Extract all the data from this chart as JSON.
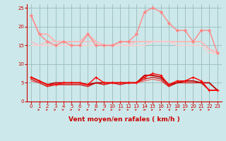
{
  "xlabel": "Vent moyen/en rafales ( km/h )",
  "background_color": "#cce8ea",
  "grid_color": "#99bbbb",
  "xlim": [
    -0.5,
    23.5
  ],
  "ylim": [
    0,
    26
  ],
  "yticks": [
    0,
    5,
    10,
    15,
    20,
    25
  ],
  "xticks": [
    0,
    1,
    2,
    3,
    4,
    5,
    6,
    7,
    8,
    9,
    10,
    11,
    12,
    13,
    14,
    15,
    16,
    17,
    18,
    19,
    20,
    21,
    22,
    23
  ],
  "series": [
    {
      "name": "rafales_light",
      "y": [
        23,
        18,
        18,
        16,
        16,
        16,
        16,
        18,
        16,
        15,
        15,
        16,
        16,
        16,
        16,
        16,
        16,
        16,
        16,
        16,
        16,
        16,
        14,
        13
      ],
      "color": "#ffaaaa",
      "lw": 1.2,
      "marker": null,
      "zorder": 2
    },
    {
      "name": "rafales_mid",
      "y": [
        23,
        18,
        16,
        15,
        16,
        15,
        15,
        18,
        15,
        15,
        15,
        16,
        16,
        18,
        24,
        25,
        24,
        21,
        19,
        19,
        16,
        19,
        19,
        13
      ],
      "color": "#ff8888",
      "lw": 1.0,
      "marker": "D",
      "ms": 2.0,
      "zorder": 3
    },
    {
      "name": "moyen_light1",
      "y": [
        16,
        15,
        16,
        16,
        16,
        16,
        16,
        16,
        16,
        15,
        15,
        15,
        15,
        16,
        16,
        16,
        16,
        16,
        16,
        16,
        16,
        16,
        14,
        13
      ],
      "color": "#ffbbbb",
      "lw": 1.0,
      "marker": null,
      "zorder": 2
    },
    {
      "name": "moyen_light2",
      "y": [
        15,
        15,
        15,
        15,
        15,
        15,
        15,
        15,
        15,
        15,
        15,
        15,
        15,
        15,
        15,
        16,
        16,
        16,
        15,
        15,
        15,
        15,
        13,
        13
      ],
      "color": "#ffcccc",
      "lw": 1.0,
      "marker": null,
      "zorder": 2
    },
    {
      "name": "wind_dark1",
      "y": [
        6.5,
        5.5,
        4.5,
        5,
        5,
        5,
        5,
        4.5,
        5,
        5,
        5,
        5,
        5,
        5,
        7,
        7,
        6.5,
        4.5,
        5,
        5.5,
        5.5,
        5,
        5,
        3
      ],
      "color": "#bb0000",
      "lw": 1.3,
      "marker": null,
      "zorder": 5
    },
    {
      "name": "wind_red_marker",
      "y": [
        6.5,
        5.5,
        4.5,
        4.5,
        5,
        5,
        5,
        4.5,
        6.5,
        5,
        5,
        5,
        5,
        5,
        6.5,
        7.5,
        7.0,
        4.5,
        5.5,
        5.5,
        6.5,
        5.5,
        3,
        3
      ],
      "color": "#ff0000",
      "lw": 1.0,
      "marker": "+",
      "ms": 3.5,
      "zorder": 6
    },
    {
      "name": "wind_dark2",
      "y": [
        6,
        5,
        4,
        4.5,
        4.5,
        4.5,
        4.5,
        4,
        5,
        4.5,
        5,
        4.5,
        5,
        5,
        6,
        6.5,
        6,
        4,
        5,
        5,
        5,
        5,
        3,
        3
      ],
      "color": "#cc2222",
      "lw": 1.0,
      "marker": null,
      "zorder": 4
    },
    {
      "name": "wind_light_red",
      "y": [
        5.5,
        5,
        4,
        4.5,
        4.5,
        4.5,
        4.5,
        4.5,
        5,
        4.5,
        5,
        5,
        5,
        5,
        5.5,
        6,
        5.5,
        4,
        5,
        5,
        5,
        5,
        3,
        3
      ],
      "color": "#ff5555",
      "lw": 0.8,
      "marker": null,
      "zorder": 3
    }
  ],
  "arrow_color": "#cc0000",
  "arrow_directions": [
    0,
    30,
    30,
    30,
    30,
    30,
    30,
    45,
    30,
    30,
    30,
    30,
    30,
    30,
    60,
    30,
    30,
    320,
    30,
    30,
    30,
    30,
    30,
    0
  ]
}
